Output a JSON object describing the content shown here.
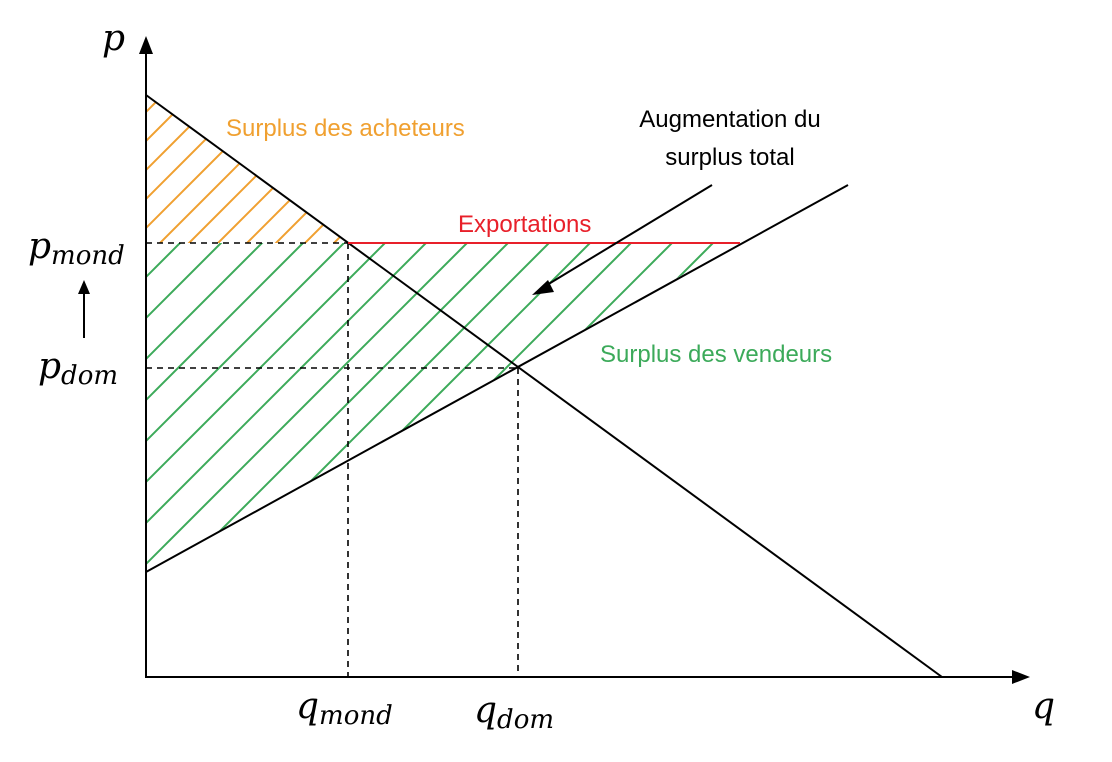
{
  "axes": {
    "y_label": "p",
    "x_label": "q"
  },
  "price_labels": {
    "world_main": "p",
    "world_sub": "mond",
    "domestic_main": "p",
    "domestic_sub": "dom",
    "arrow": "up-arrow-icon"
  },
  "quantity_labels": {
    "world_main": "q",
    "world_sub": "mond",
    "domestic_main": "q",
    "domestic_sub": "dom"
  },
  "annotations": {
    "buyers_surplus": "Surplus des acheteurs",
    "sellers_surplus": "Surplus des vendeurs",
    "exports": "Exportations",
    "increase_line1": "Augmentation du",
    "increase_line2": "surplus total"
  },
  "colors": {
    "buyers": "#f0a030",
    "sellers": "#3caa5a",
    "exports": "#e8202a",
    "lines": "#000000"
  }
}
